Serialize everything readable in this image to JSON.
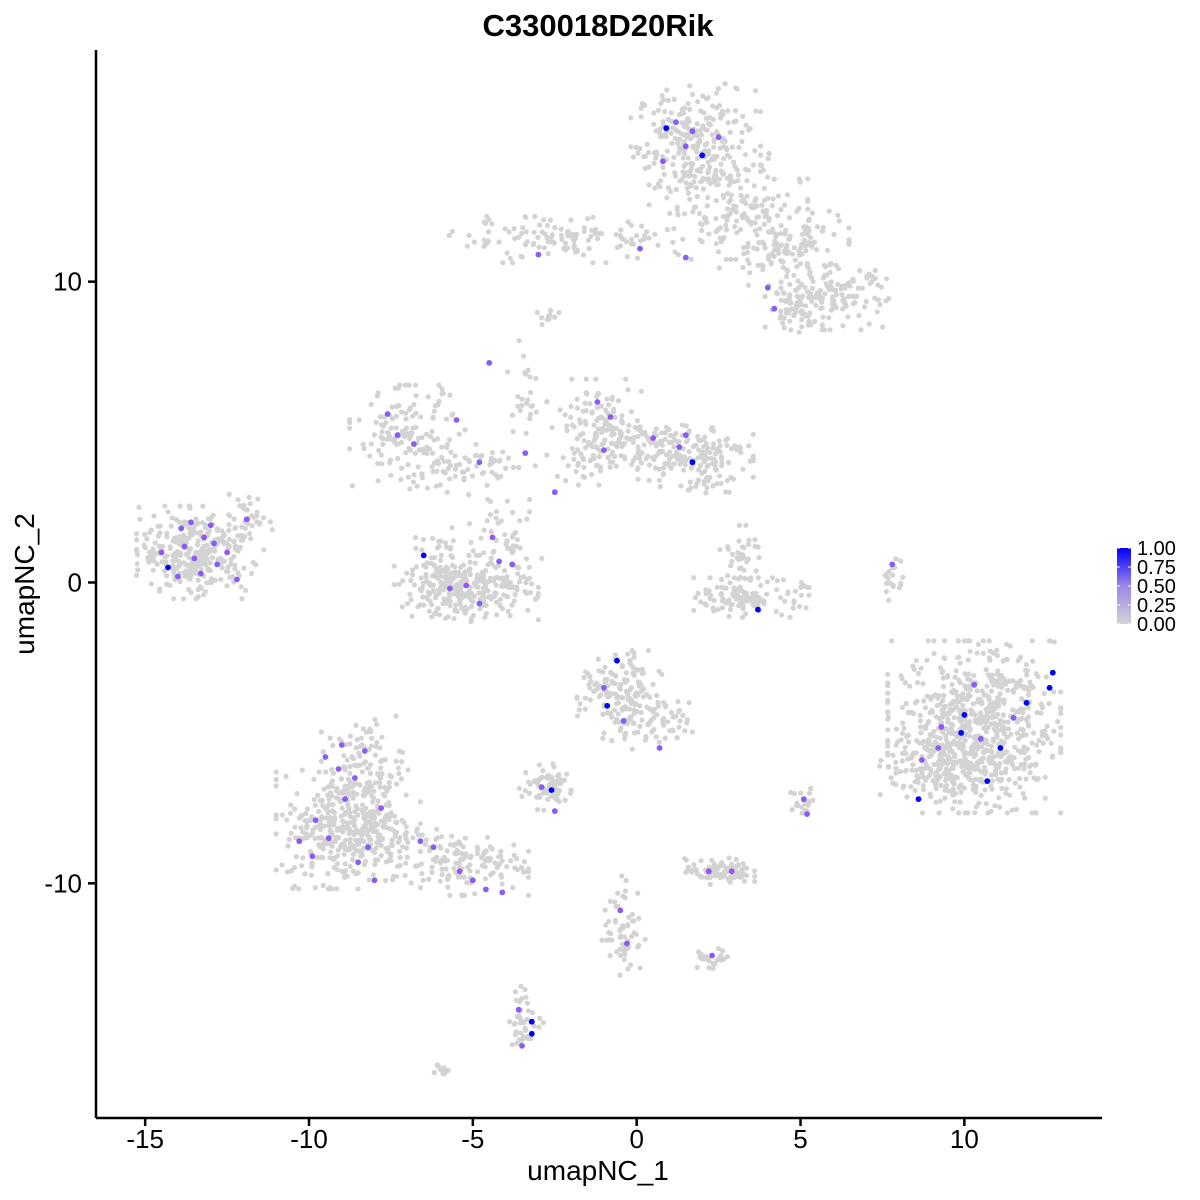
{
  "chart_data": {
    "type": "scatter",
    "title": "C330018D20Rik",
    "xlabel": "umapNC_1",
    "ylabel": "umapNC_2",
    "xlim": [
      -16.5,
      14.2
    ],
    "ylim": [
      -17.8,
      17.7
    ],
    "x_ticks": [
      -15,
      -10,
      -5,
      0,
      5,
      10
    ],
    "x_tick_labels": [
      "-15",
      "-10",
      "-5",
      "0",
      "5",
      "10"
    ],
    "y_ticks": [
      -10,
      0,
      10
    ],
    "y_tick_labels": [
      "-10",
      "0",
      "10"
    ],
    "grid": false,
    "legend_position": "right",
    "color_scale": {
      "low_color": "#d3d3d3",
      "high_color": "#0000ff",
      "min": 0,
      "max": 1,
      "breaks": [
        1.0,
        0.75,
        0.5,
        0.25,
        0.0
      ],
      "labels": [
        "1.00",
        "0.75",
        "0.50",
        "0.25",
        "0.00"
      ]
    },
    "clusters": [
      {
        "cx": 1.8,
        "cy": 14.6,
        "sx": 0.9,
        "sy": 0.9,
        "n": 260
      },
      {
        "cx": 2.8,
        "cy": 12.5,
        "sx": 1.1,
        "sy": 0.8,
        "n": 150
      },
      {
        "cx": 4.5,
        "cy": 11.2,
        "sx": 0.9,
        "sy": 0.6,
        "n": 120
      },
      {
        "cx": -2.2,
        "cy": 11.4,
        "sx": 1.6,
        "sy": 0.35,
        "n": 120
      },
      {
        "cx": 6.0,
        "cy": 9.5,
        "sx": 0.8,
        "sy": 0.5,
        "n": 120
      },
      {
        "cx": 4.8,
        "cy": 9.2,
        "sx": 0.4,
        "sy": 0.4,
        "n": 60
      },
      {
        "cx": -13.5,
        "cy": 1.0,
        "sx": 0.8,
        "sy": 0.7,
        "n": 300
      },
      {
        "cx": -12.0,
        "cy": 1.8,
        "sx": 0.4,
        "sy": 0.6,
        "n": 50
      },
      {
        "cx": -7.0,
        "cy": 4.8,
        "sx": 0.8,
        "sy": 0.8,
        "n": 140
      },
      {
        "cx": -5.0,
        "cy": 3.8,
        "sx": 0.9,
        "sy": 0.4,
        "n": 60
      },
      {
        "cx": -5.2,
        "cy": -0.2,
        "sx": 1.0,
        "sy": 0.5,
        "n": 260
      },
      {
        "cx": -4.0,
        "cy": 1.0,
        "sx": 0.5,
        "sy": 0.8,
        "n": 60
      },
      {
        "cx": -6.0,
        "cy": 0.5,
        "sx": 0.4,
        "sy": 0.6,
        "n": 40
      },
      {
        "cx": -1.2,
        "cy": 5.0,
        "sx": 0.7,
        "sy": 0.8,
        "n": 140
      },
      {
        "cx": 1.8,
        "cy": 4.2,
        "sx": 0.8,
        "sy": 0.6,
        "n": 140
      },
      {
        "cx": 0.2,
        "cy": 4.5,
        "sx": 1.0,
        "sy": 0.4,
        "n": 80
      },
      {
        "cx": 3.5,
        "cy": -0.5,
        "sx": 0.8,
        "sy": 0.3,
        "n": 120
      },
      {
        "cx": 3.2,
        "cy": 0.8,
        "sx": 0.3,
        "sy": 0.5,
        "n": 40
      },
      {
        "cx": 10.3,
        "cy": -4.8,
        "sx": 1.2,
        "sy": 1.3,
        "n": 700
      },
      {
        "cx": 9.4,
        "cy": -6.2,
        "sx": 0.9,
        "sy": 0.5,
        "n": 140
      },
      {
        "cx": -0.5,
        "cy": -3.8,
        "sx": 0.6,
        "sy": 0.7,
        "n": 160
      },
      {
        "cx": 0.6,
        "cy": -4.8,
        "sx": 0.5,
        "sy": 0.4,
        "n": 50
      },
      {
        "cx": -8.8,
        "cy": -8.2,
        "sx": 1.0,
        "sy": 0.9,
        "n": 380
      },
      {
        "cx": -8.3,
        "cy": -6.2,
        "sx": 0.6,
        "sy": 0.8,
        "n": 120
      },
      {
        "cx": -5.5,
        "cy": -9.3,
        "sx": 1.0,
        "sy": 0.5,
        "n": 140
      },
      {
        "cx": -2.7,
        "cy": -6.8,
        "sx": 0.4,
        "sy": 0.35,
        "n": 70
      },
      {
        "cx": 2.5,
        "cy": -9.6,
        "sx": 0.5,
        "sy": 0.2,
        "n": 80
      },
      {
        "cx": -0.4,
        "cy": -11.5,
        "sx": 0.3,
        "sy": 0.8,
        "n": 60
      },
      {
        "cx": 2.3,
        "cy": -12.5,
        "sx": 0.3,
        "sy": 0.15,
        "n": 25
      },
      {
        "cx": -3.4,
        "cy": -14.5,
        "sx": 0.25,
        "sy": 0.5,
        "n": 45
      },
      {
        "cx": -6.0,
        "cy": -16.2,
        "sx": 0.2,
        "sy": 0.1,
        "n": 12
      },
      {
        "cx": 5.1,
        "cy": -7.4,
        "sx": 0.2,
        "sy": 0.3,
        "n": 20
      },
      {
        "cx": 7.8,
        "cy": 0.2,
        "sx": 0.15,
        "sy": 0.4,
        "n": 20
      },
      {
        "cx": -3.5,
        "cy": 6.5,
        "sx": 0.2,
        "sy": 0.7,
        "n": 25
      },
      {
        "cx": -2.7,
        "cy": 8.8,
        "sx": 0.15,
        "sy": 0.2,
        "n": 10
      }
    ],
    "expressing_points": [
      [
        0.9,
        15.1,
        1.0
      ],
      [
        2.0,
        14.2,
        1.0
      ],
      [
        1.5,
        14.5,
        0.6
      ],
      [
        1.2,
        15.3,
        0.55
      ],
      [
        0.8,
        14.0,
        0.55
      ],
      [
        2.5,
        14.8,
        0.6
      ],
      [
        1.7,
        15.0,
        0.55
      ],
      [
        -3.0,
        10.9,
        0.6
      ],
      [
        0.1,
        11.1,
        0.6
      ],
      [
        1.5,
        10.8,
        0.55
      ],
      [
        4.0,
        9.8,
        0.6
      ],
      [
        4.2,
        9.1,
        0.6
      ],
      [
        -14.3,
        0.5,
        1.0
      ],
      [
        -13.8,
        1.2,
        0.6
      ],
      [
        -13.5,
        0.8,
        0.6
      ],
      [
        -13.2,
        1.5,
        0.6
      ],
      [
        -13.9,
        1.8,
        0.6
      ],
      [
        -12.8,
        0.6,
        0.6
      ],
      [
        -14.0,
        0.2,
        0.6
      ],
      [
        -13.6,
        2.0,
        0.6
      ],
      [
        -12.5,
        1.0,
        0.55
      ],
      [
        -13.0,
        1.9,
        0.6
      ],
      [
        -14.5,
        1.0,
        0.6
      ],
      [
        -13.3,
        0.3,
        0.6
      ],
      [
        -12.9,
        1.3,
        0.6
      ],
      [
        -11.9,
        2.1,
        0.55
      ],
      [
        -12.2,
        0.1,
        0.55
      ],
      [
        -7.6,
        5.6,
        0.6
      ],
      [
        -7.3,
        4.9,
        0.6
      ],
      [
        -6.8,
        4.6,
        0.6
      ],
      [
        -5.5,
        5.4,
        0.6
      ],
      [
        -4.8,
        4.0,
        0.6
      ],
      [
        -3.4,
        4.3,
        0.55
      ],
      [
        -4.5,
        7.3,
        0.6
      ],
      [
        -6.5,
        0.9,
        1.0
      ],
      [
        -5.2,
        -0.1,
        0.6
      ],
      [
        -4.8,
        -0.7,
        0.6
      ],
      [
        -4.2,
        0.7,
        0.6
      ],
      [
        -3.8,
        0.6,
        0.6
      ],
      [
        -4.4,
        1.5,
        0.55
      ],
      [
        -5.7,
        -0.2,
        0.6
      ],
      [
        -1.2,
        6.0,
        0.6
      ],
      [
        -1.0,
        4.4,
        0.6
      ],
      [
        0.5,
        4.8,
        0.6
      ],
      [
        1.7,
        4.0,
        1.0
      ],
      [
        1.3,
        4.5,
        0.6
      ],
      [
        1.5,
        4.9,
        0.6
      ],
      [
        -2.5,
        3.0,
        0.55
      ],
      [
        -0.8,
        5.5,
        0.55
      ],
      [
        3.7,
        -0.9,
        1.0
      ],
      [
        7.8,
        0.6,
        0.55
      ],
      [
        -0.6,
        -2.6,
        1.0
      ],
      [
        -0.9,
        -4.1,
        1.0
      ],
      [
        -1.0,
        -3.5,
        0.6
      ],
      [
        -0.4,
        -4.6,
        0.6
      ],
      [
        0.7,
        -5.5,
        0.6
      ],
      [
        12.7,
        -3.0,
        1.0
      ],
      [
        12.6,
        -3.5,
        1.0
      ],
      [
        11.9,
        -4.0,
        1.0
      ],
      [
        10.0,
        -4.4,
        1.0
      ],
      [
        9.9,
        -5.0,
        1.0
      ],
      [
        11.1,
        -5.5,
        1.0
      ],
      [
        10.7,
        -6.6,
        1.0
      ],
      [
        8.6,
        -7.2,
        1.0
      ],
      [
        9.3,
        -4.8,
        0.6
      ],
      [
        10.5,
        -5.2,
        0.6
      ],
      [
        11.5,
        -4.5,
        0.6
      ],
      [
        9.2,
        -5.5,
        0.6
      ],
      [
        10.3,
        -3.4,
        0.55
      ],
      [
        8.7,
        -5.9,
        0.55
      ],
      [
        -2.6,
        -6.9,
        1.0
      ],
      [
        -2.5,
        -7.6,
        0.6
      ],
      [
        -2.9,
        -6.8,
        0.6
      ],
      [
        -9.5,
        -5.8,
        0.6
      ],
      [
        -9.1,
        -6.2,
        0.6
      ],
      [
        -8.6,
        -6.5,
        0.6
      ],
      [
        -8.9,
        -7.2,
        0.6
      ],
      [
        -9.8,
        -7.9,
        0.6
      ],
      [
        -9.4,
        -8.5,
        0.6
      ],
      [
        -8.2,
        -8.8,
        0.6
      ],
      [
        -8.5,
        -9.3,
        0.6
      ],
      [
        -9.9,
        -9.1,
        0.6
      ],
      [
        -10.3,
        -8.6,
        0.6
      ],
      [
        -7.8,
        -7.5,
        0.6
      ],
      [
        -8.0,
        -9.9,
        0.6
      ],
      [
        -6.6,
        -8.6,
        0.6
      ],
      [
        -6.2,
        -8.8,
        0.6
      ],
      [
        -5.4,
        -9.6,
        0.6
      ],
      [
        -5.0,
        -9.9,
        0.6
      ],
      [
        -4.6,
        -10.2,
        0.6
      ],
      [
        -4.1,
        -10.3,
        0.55
      ],
      [
        -9.0,
        -5.4,
        0.55
      ],
      [
        -8.3,
        -5.6,
        0.55
      ],
      [
        2.2,
        -9.6,
        0.6
      ],
      [
        2.9,
        -9.6,
        0.6
      ],
      [
        2.3,
        -12.4,
        0.6
      ],
      [
        -0.3,
        -12.0,
        0.55
      ],
      [
        -0.5,
        -10.9,
        0.55
      ],
      [
        -3.2,
        -14.6,
        1.0
      ],
      [
        -3.2,
        -15.0,
        1.0
      ],
      [
        -3.5,
        -15.4,
        0.6
      ],
      [
        -3.6,
        -14.2,
        0.55
      ],
      [
        5.1,
        -7.2,
        0.6
      ],
      [
        5.2,
        -7.7,
        0.55
      ]
    ]
  }
}
